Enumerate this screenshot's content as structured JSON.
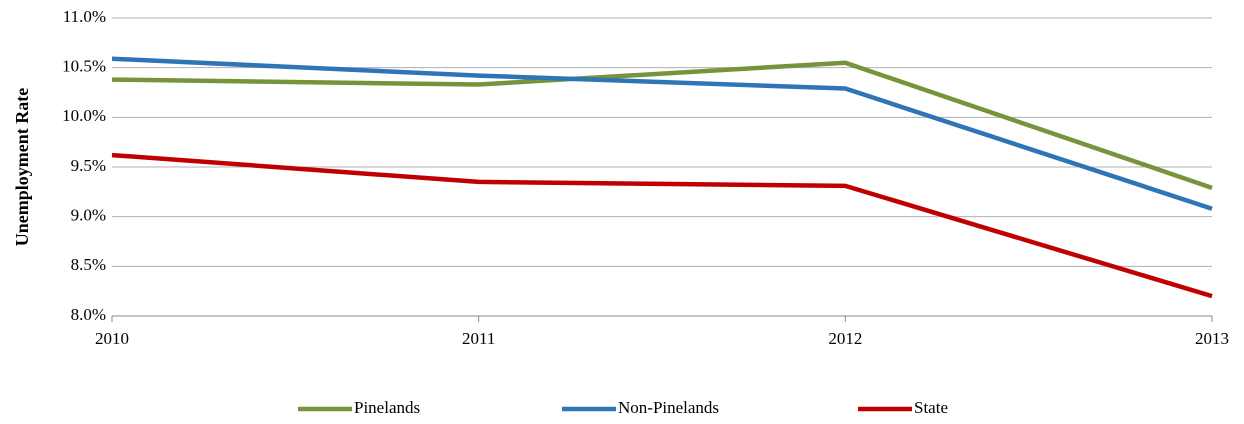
{
  "chart_data": {
    "type": "line",
    "y_label": "Unemployment Rate",
    "x": [
      2010,
      2011,
      2012,
      2013
    ],
    "xlim": [
      2010,
      2013
    ],
    "xticks": [
      2010,
      2011,
      2012,
      2013
    ],
    "ylim": [
      8,
      11
    ],
    "yticks": [
      {
        "value": 8,
        "label": "8.0%"
      },
      {
        "value": 8.5,
        "label": "8.5%"
      },
      {
        "value": 9,
        "label": "9.0%"
      },
      {
        "value": 9.5,
        "label": "9.5%"
      },
      {
        "value": 10,
        "label": "10.0%"
      },
      {
        "value": 10.5,
        "label": "10.5%"
      },
      {
        "value": 11,
        "label": "11.0%"
      }
    ],
    "grid": true,
    "legend": "bottom",
    "series": [
      {
        "name": "Pinelands",
        "color": "#77933c",
        "values": [
          10.38,
          10.33,
          10.55,
          9.29
        ]
      },
      {
        "name": "Non-Pinelands",
        "color": "#2e75b6",
        "values": [
          10.59,
          10.42,
          10.29,
          9.08
        ]
      },
      {
        "name": "State",
        "color": "#c00000",
        "values": [
          9.62,
          9.35,
          9.31,
          8.2
        ]
      }
    ]
  }
}
